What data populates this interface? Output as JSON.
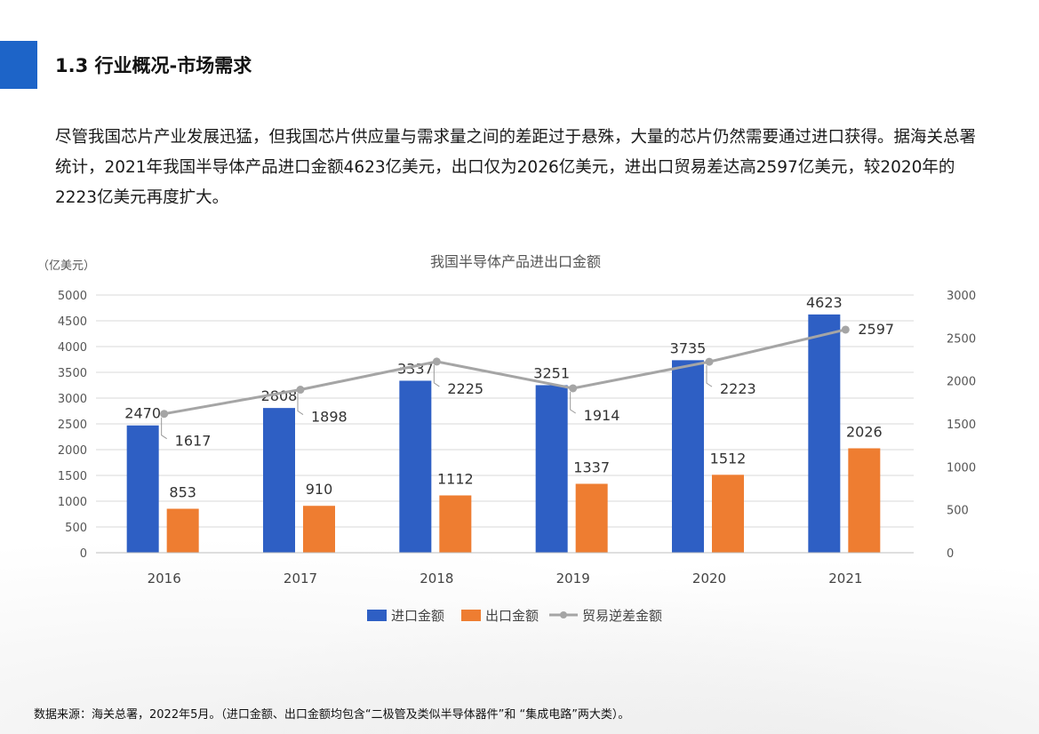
{
  "header": {
    "title": "1.3 行业概况-市场需求"
  },
  "intro": {
    "text": "尽管我国芯片产业发展迅猛，但我国芯片供应量与需求量之间的差距过于悬殊，大量的芯片仍然需要通过进口获得。据海关总署统计，2021年我国半导体产品进口金额4623亿美元，出口仅为2026亿美元，进出口贸易差达高2597亿美元，较2020年的2223亿美元再度扩大。"
  },
  "footer": {
    "source": "数据来源：海关总署，2022年5月。（进口金额、出口金额均包含“二极管及类似半导体器件”和 “集成电路”两大类）。"
  },
  "chart_data": {
    "type": "bar",
    "title": "我国半导体产品进出口金额",
    "ylabel": "（亿美元）",
    "categories": [
      "2016",
      "2017",
      "2018",
      "2019",
      "2020",
      "2021"
    ],
    "ylim": [
      0,
      5000
    ],
    "yticks": [
      "5000",
      "4500",
      "4000",
      "3500",
      "3000",
      "2500",
      "2000",
      "1500",
      "1000",
      "500",
      "0"
    ],
    "y2lim": [
      0,
      3000
    ],
    "y2ticks": [
      "3000",
      "2500",
      "2000",
      "1500",
      "1000",
      "500",
      "0"
    ],
    "series": [
      {
        "name": "进口金额",
        "type": "bar",
        "axis": "left",
        "color": "#2e5fc4",
        "values": [
          2470,
          2808,
          3337,
          3251,
          3735,
          4623
        ]
      },
      {
        "name": "出口金额",
        "type": "bar",
        "axis": "left",
        "color": "#ee7d31",
        "values": [
          853,
          910,
          1112,
          1337,
          1512,
          2026
        ]
      },
      {
        "name": "贸易逆差金额",
        "type": "line",
        "axis": "right",
        "color": "#a5a5a5",
        "values": [
          1617,
          1898,
          2225,
          1914,
          2223,
          2597
        ]
      }
    ],
    "grid": true,
    "legend": "bottom"
  }
}
